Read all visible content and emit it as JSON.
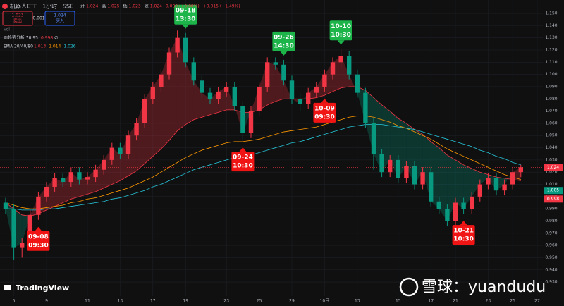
{
  "chart_data": {
    "type": "candlestick",
    "title": "机器人ETF · 1小时 · SSE",
    "quote": [
      {
        "label": "开",
        "value": 1.024
      },
      {
        "label": "高",
        "value": 1.025
      },
      {
        "label": "低",
        "value": 1.023
      },
      {
        "label": "收",
        "value": 1.024
      }
    ],
    "change_texts": [
      "0.000 (+0.00%)",
      "+0.015 (+1.49%)"
    ],
    "sell": {
      "price": 1.023,
      "label": "卖出"
    },
    "spread": 0.001,
    "buy": {
      "price": 1.024,
      "label": "买入"
    },
    "vol_label": "Vol",
    "indicator": {
      "label": "AI趋势分析 70 95",
      "value": 0.998,
      "suffix": "∅"
    },
    "ema_label": "EMA 20/40/80",
    "up_color": "#f23645",
    "down_color": "#089981",
    "categories": [
      null,
      "5",
      null,
      null,
      null,
      "9",
      null,
      null,
      null,
      null,
      "11",
      null,
      null,
      null,
      "13",
      null,
      null,
      null,
      "17",
      null,
      null,
      null,
      "19",
      null,
      null,
      null,
      null,
      "23",
      null,
      null,
      null,
      "25",
      null,
      null,
      null,
      "29",
      null,
      null,
      null,
      "10月",
      null,
      null,
      null,
      "13",
      null,
      null,
      null,
      null,
      "15",
      null,
      null,
      null,
      "17",
      null,
      null,
      "21",
      null,
      null,
      null,
      "23",
      null,
      null,
      "25",
      null,
      null,
      "27"
    ],
    "open": [
      0.995,
      0.99,
      0.958,
      0.962,
      0.985,
      1.0,
      1.008,
      1.015,
      1.012,
      1.02,
      1.014,
      1.016,
      1.022,
      1.03,
      1.04,
      1.035,
      1.05,
      1.06,
      1.08,
      1.09,
      1.1,
      1.118,
      1.13,
      1.11,
      1.095,
      1.085,
      1.08,
      1.086,
      1.09,
      1.074,
      1.052,
      1.07,
      1.09,
      1.11,
      1.108,
      1.095,
      1.08,
      1.076,
      1.085,
      1.09,
      1.1,
      1.11,
      1.115,
      1.1,
      1.085,
      1.06,
      1.035,
      1.02,
      1.03,
      1.015,
      1.025,
      1.01,
      1.02,
      0.996,
      0.99,
      0.98,
      0.995,
      0.99,
      1.0,
      1.01,
      1.015,
      1.005,
      1.01,
      1.02,
      null,
      null
    ],
    "high": [
      0.999,
      0.994,
      0.966,
      0.989,
      1.004,
      1.012,
      1.019,
      1.019,
      1.024,
      1.024,
      1.02,
      1.026,
      1.034,
      1.044,
      1.044,
      1.054,
      1.064,
      1.084,
      1.094,
      1.104,
      1.122,
      1.136,
      1.134,
      1.114,
      1.099,
      1.089,
      1.09,
      1.094,
      1.094,
      1.078,
      1.074,
      1.094,
      1.114,
      1.114,
      1.112,
      1.099,
      1.084,
      1.089,
      1.094,
      1.104,
      1.114,
      1.121,
      1.119,
      1.104,
      1.089,
      1.064,
      1.039,
      1.034,
      1.034,
      1.029,
      1.029,
      1.024,
      1.024,
      1.0,
      0.994,
      0.999,
      0.999,
      1.004,
      1.014,
      1.019,
      1.019,
      1.014,
      1.024,
      1.026,
      null,
      null
    ],
    "low": [
      0.986,
      0.948,
      0.95,
      0.958,
      0.981,
      0.996,
      1.004,
      1.008,
      1.008,
      1.01,
      1.01,
      1.012,
      1.018,
      1.026,
      1.031,
      1.031,
      1.046,
      1.056,
      1.076,
      1.086,
      1.096,
      1.114,
      1.106,
      1.091,
      1.081,
      1.076,
      1.076,
      1.082,
      1.07,
      1.046,
      1.048,
      1.066,
      1.086,
      1.104,
      1.091,
      1.076,
      1.07,
      1.072,
      1.081,
      1.086,
      1.096,
      1.106,
      1.096,
      1.081,
      1.056,
      1.022,
      1.016,
      1.016,
      1.011,
      1.011,
      1.006,
      1.006,
      0.992,
      0.986,
      0.976,
      0.976,
      0.986,
      0.986,
      0.996,
      1.006,
      1.001,
      1.001,
      1.006,
      1.016,
      null,
      null
    ],
    "close": [
      0.99,
      0.958,
      0.962,
      0.985,
      1.0,
      1.008,
      1.015,
      1.012,
      1.02,
      1.014,
      1.016,
      1.022,
      1.03,
      1.04,
      1.035,
      1.05,
      1.06,
      1.08,
      1.09,
      1.1,
      1.118,
      1.13,
      1.11,
      1.095,
      1.085,
      1.08,
      1.086,
      1.09,
      1.074,
      1.052,
      1.07,
      1.09,
      1.11,
      1.108,
      1.095,
      1.08,
      1.076,
      1.085,
      1.09,
      1.1,
      1.11,
      1.115,
      1.1,
      1.085,
      1.06,
      1.035,
      1.02,
      1.03,
      1.015,
      1.025,
      1.01,
      1.02,
      0.996,
      0.99,
      0.98,
      0.995,
      0.99,
      1.0,
      1.01,
      1.015,
      1.005,
      1.01,
      1.02,
      1.024,
      null,
      null
    ],
    "series": [
      {
        "color": "#f23645",
        "values": [
          0.995,
          0.99,
          0.985,
          0.984,
          0.986,
          0.989,
          0.992,
          0.995,
          0.998,
          1.0,
          1.002,
          1.004,
          1.007,
          1.01,
          1.013,
          1.017,
          1.021,
          1.027,
          1.033,
          1.039,
          1.046,
          1.054,
          1.059,
          1.063,
          1.065,
          1.067,
          1.069,
          1.071,
          1.071,
          1.069,
          1.069,
          1.071,
          1.075,
          1.078,
          1.08,
          1.08,
          1.08,
          1.08,
          1.081,
          1.083,
          1.086,
          1.089,
          1.09,
          1.09,
          1.087,
          1.081,
          1.075,
          1.07,
          1.064,
          1.06,
          1.055,
          1.051,
          1.045,
          1.04,
          1.034,
          1.03,
          1.026,
          1.023,
          1.02,
          1.018,
          1.016,
          1.015,
          1.014,
          1.013,
          null,
          null
        ]
      },
      {
        "color": "#ff9800",
        "values": [
          0.995,
          0.993,
          0.991,
          0.99,
          0.99,
          0.991,
          0.992,
          0.993,
          0.995,
          0.996,
          0.998,
          0.999,
          1.001,
          1.003,
          1.005,
          1.007,
          1.01,
          1.013,
          1.016,
          1.02,
          1.024,
          1.028,
          1.032,
          1.035,
          1.038,
          1.04,
          1.042,
          1.044,
          1.045,
          1.045,
          1.046,
          1.047,
          1.049,
          1.051,
          1.053,
          1.054,
          1.055,
          1.056,
          1.057,
          1.059,
          1.061,
          1.063,
          1.065,
          1.066,
          1.066,
          1.065,
          1.063,
          1.061,
          1.058,
          1.056,
          1.053,
          1.05,
          1.047,
          1.043,
          1.039,
          1.036,
          1.033,
          1.03,
          1.027,
          1.024,
          1.021,
          1.018,
          1.016,
          1.014,
          null,
          null
        ]
      },
      {
        "color": "#26c6da",
        "values": [
          0.99,
          0.99,
          0.989,
          0.989,
          0.989,
          0.99,
          0.99,
          0.991,
          0.992,
          0.993,
          0.994,
          0.995,
          0.996,
          0.998,
          0.999,
          1.001,
          1.003,
          1.005,
          1.008,
          1.01,
          1.013,
          1.016,
          1.019,
          1.022,
          1.024,
          1.026,
          1.028,
          1.03,
          1.032,
          1.033,
          1.034,
          1.036,
          1.038,
          1.04,
          1.042,
          1.044,
          1.045,
          1.047,
          1.049,
          1.051,
          1.053,
          1.055,
          1.057,
          1.058,
          1.059,
          1.059,
          1.059,
          1.058,
          1.057,
          1.056,
          1.055,
          1.053,
          1.051,
          1.049,
          1.047,
          1.045,
          1.043,
          1.041,
          1.038,
          1.036,
          1.033,
          1.031,
          1.028,
          1.026,
          null,
          null
        ]
      }
    ],
    "ema_values": [
      1.013,
      1.014,
      1.026
    ],
    "annotations": [
      {
        "lines": [
          "09-08",
          "09:30"
        ],
        "index": 4,
        "side": "below",
        "color": "#f01414"
      },
      {
        "lines": [
          "09-18",
          "13:30"
        ],
        "index": 22,
        "side": "above",
        "color": "#1db44a"
      },
      {
        "lines": [
          "09-24",
          "10:30"
        ],
        "index": 29,
        "side": "below",
        "color": "#f01414"
      },
      {
        "lines": [
          "09-26",
          "14:30"
        ],
        "index": 34,
        "side": "above",
        "color": "#1db44a"
      },
      {
        "lines": [
          "10-09",
          "09:30"
        ],
        "index": 39,
        "side": "below",
        "color": "#f01414"
      },
      {
        "lines": [
          "10-10",
          "10:30"
        ],
        "index": 41,
        "side": "above",
        "color": "#1db44a"
      },
      {
        "lines": [
          "10-21",
          "10:30"
        ],
        "index": 56,
        "side": "below",
        "color": "#f01414"
      }
    ],
    "price_markers": [
      {
        "value": 1.024,
        "color": "#f23645"
      },
      {
        "value": 1.005,
        "color": "#089981"
      },
      {
        "value": 0.998,
        "color": "#f23645"
      }
    ],
    "ylim": [
      0.92,
      1.161
    ],
    "yticks": [
      {
        "value": 0.93,
        "label": "0.930"
      },
      {
        "value": 0.94,
        "label": "0.940"
      },
      {
        "value": 0.95,
        "label": "0.950"
      },
      {
        "value": 0.96,
        "label": "0.960"
      },
      {
        "value": 0.97,
        "label": "0.970"
      },
      {
        "value": 0.98,
        "label": "0.980"
      },
      {
        "value": 0.99,
        "label": "0.990"
      },
      {
        "value": 1.0,
        "label": "1.000"
      },
      {
        "value": 1.01,
        "label": "1.010"
      },
      {
        "value": 1.02,
        "label": "1.020"
      },
      {
        "value": 1.03,
        "label": "1.030"
      },
      {
        "value": 1.04,
        "label": "1.040"
      },
      {
        "value": 1.05,
        "label": "1.050"
      },
      {
        "value": 1.06,
        "label": "1.060"
      },
      {
        "value": 1.07,
        "label": "1.070"
      },
      {
        "value": 1.08,
        "label": "1.080"
      },
      {
        "value": 1.09,
        "label": "1.090"
      },
      {
        "value": 1.1,
        "label": "1.100"
      },
      {
        "value": 1.11,
        "label": "1.110"
      },
      {
        "value": 1.12,
        "label": "1.120"
      },
      {
        "value": 1.13,
        "label": "1.130"
      },
      {
        "value": 1.14,
        "label": "1.140"
      },
      {
        "value": 1.15,
        "label": "1.150"
      }
    ],
    "grid": true,
    "logo": "TradingView",
    "watermark": "雪球：yuandudu"
  }
}
